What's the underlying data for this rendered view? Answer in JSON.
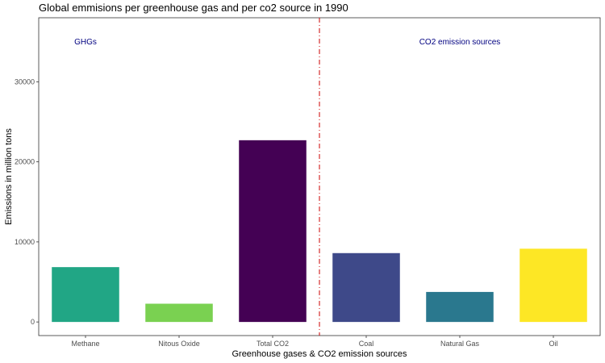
{
  "chart_data": {
    "type": "bar",
    "title": "Global emmisions per greenhouse gas and per co2 source in 1990",
    "xlabel": "Greenhouse gases & CO2 emission sources",
    "ylabel": "Emissions in million tons",
    "categories": [
      "Methane",
      "Nitous Oxide",
      "Total CO2",
      "Coal",
      "Natural Gas",
      "Oil"
    ],
    "values": [
      6850,
      2280,
      22700,
      8600,
      3750,
      9150
    ],
    "colors": [
      "#21a685",
      "#7ad151",
      "#440154",
      "#3e4989",
      "#2a788e",
      "#fde725"
    ],
    "ylim": [
      -1700,
      38000
    ],
    "yticks": [
      0,
      10000,
      20000,
      30000
    ],
    "grid": false,
    "divider": {
      "after_category": "Total CO2",
      "color": "#cc0000",
      "style": "dashed"
    },
    "annotations": [
      {
        "text": "GHGs",
        "x_category": "Methane",
        "y": 35000,
        "color": "#000080"
      },
      {
        "text": "CO2 emission sources",
        "x_category": "Natural Gas",
        "y": 35000,
        "color": "#000080"
      }
    ]
  }
}
